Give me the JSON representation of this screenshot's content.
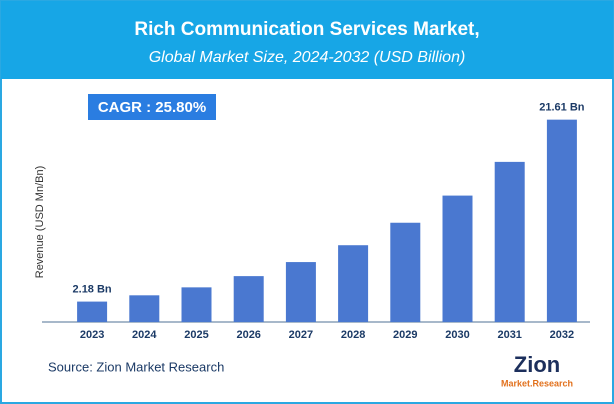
{
  "chart_data": {
    "type": "bar",
    "title": "Rich Communication Services Market,",
    "subtitle": "Global Market Size, 2024-2032 (USD Billion)",
    "annotation": "CAGR : 25.80%",
    "y_label": "Revenue (USD Mn/Bn)",
    "categories": [
      "2023",
      "2024",
      "2025",
      "2026",
      "2027",
      "2028",
      "2029",
      "2030",
      "2031",
      "2032"
    ],
    "values": [
      2.18,
      2.85,
      3.7,
      4.9,
      6.4,
      8.2,
      10.6,
      13.5,
      17.1,
      21.61
    ],
    "value_labels": [
      "2.18 Bn",
      null,
      null,
      null,
      null,
      null,
      null,
      null,
      null,
      "21.61 Bn"
    ],
    "color": "#4a78d0",
    "ylim": [
      0,
      22
    ],
    "source": "Source: Zion Market Research",
    "logo": {
      "name": "Zion",
      "tagline": "Market.Research"
    }
  }
}
